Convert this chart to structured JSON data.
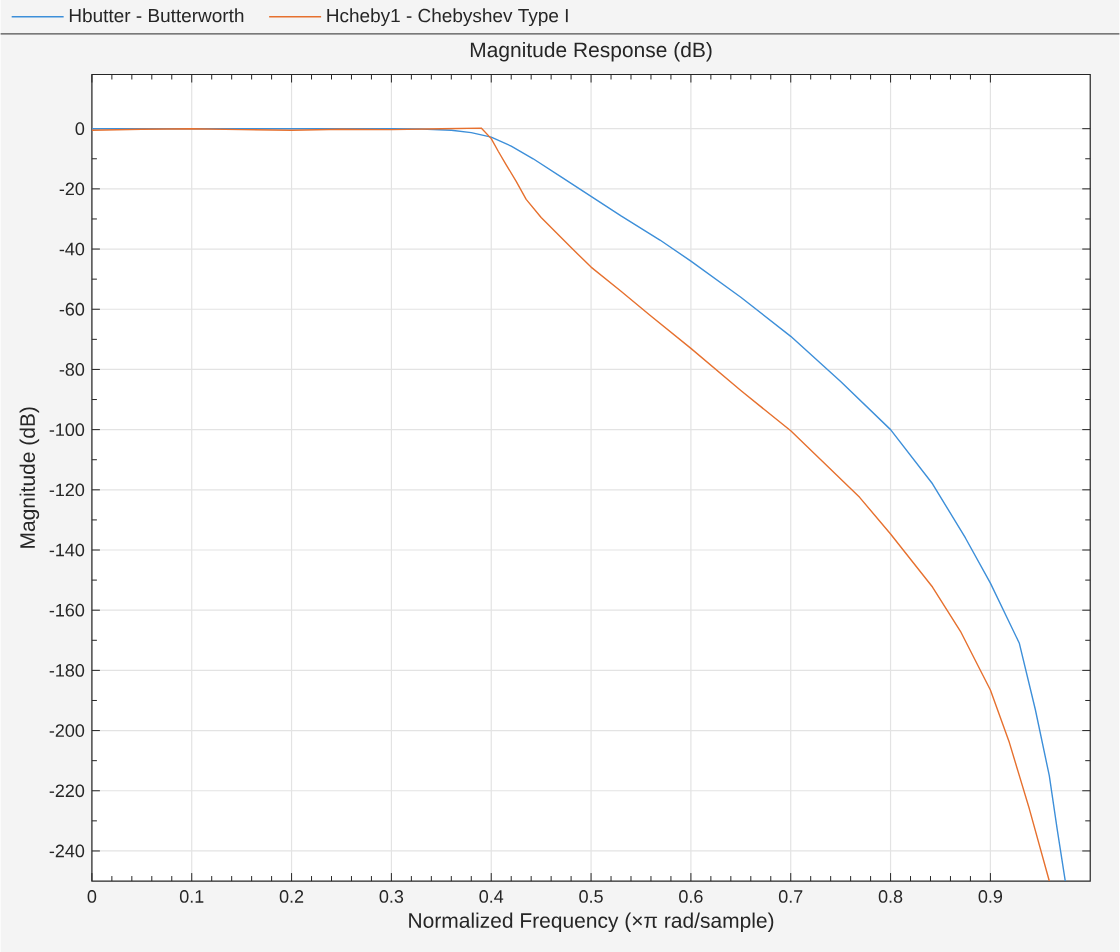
{
  "chart_data": {
    "type": "line",
    "title": "Magnitude Response (dB)",
    "xlabel": "Normalized Frequency (×π rad/sample)",
    "ylabel": "Magnitude (dB)",
    "xlim": [
      0,
      1
    ],
    "ylim": [
      -250,
      18
    ],
    "xticks": [
      0,
      0.1,
      0.2,
      0.3,
      0.4,
      0.5,
      0.6,
      0.7,
      0.8,
      0.9
    ],
    "yticks": [
      -240,
      -220,
      -200,
      -180,
      -160,
      -140,
      -120,
      -100,
      -80,
      -60,
      -40,
      -20,
      0
    ],
    "grid": true,
    "legend": "top",
    "line_style": "solid",
    "series": [
      {
        "name": "Hbutter - Butterworth",
        "color": "#3d8fd9",
        "x": [
          0,
          0.1,
          0.2,
          0.3,
          0.33,
          0.36,
          0.38,
          0.4,
          0.42,
          0.442,
          0.47,
          0.5,
          0.53,
          0.569,
          0.6,
          0.65,
          0.7,
          0.75,
          0.8,
          0.842,
          0.875,
          0.9,
          0.929,
          0.945,
          0.959,
          0.967,
          0.975
        ],
        "values": [
          0,
          0,
          0,
          0,
          -0.1,
          -0.5,
          -1.3,
          -2.8,
          -5.8,
          -10,
          -16,
          -22.5,
          -29,
          -37,
          -44,
          -56,
          -69,
          -84,
          -100,
          -118,
          -136,
          -151,
          -171,
          -193,
          -215,
          -233,
          -250
        ]
      },
      {
        "name": "Hcheby1 - Chebyshev Type I",
        "color": "#e6702e",
        "x": [
          0,
          0.05,
          0.1,
          0.15,
          0.2,
          0.25,
          0.3,
          0.35,
          0.39,
          0.4,
          0.407,
          0.415,
          0.425,
          0.435,
          0.45,
          0.465,
          0.48,
          0.5,
          0.53,
          0.559,
          0.6,
          0.65,
          0.7,
          0.769,
          0.8,
          0.842,
          0.87,
          0.9,
          0.919,
          0.939,
          0.959
        ],
        "values": [
          -0.5,
          -0.2,
          0,
          -0.3,
          -0.5,
          -0.2,
          -0.3,
          0,
          0.2,
          -3.3,
          -7.5,
          -12,
          -17.5,
          -23.5,
          -29.5,
          -34.5,
          -39.5,
          -46,
          -54,
          -62,
          -73,
          -87,
          -100.4,
          -122.5,
          -134.7,
          -152.3,
          -167,
          -186.5,
          -204,
          -226,
          -250
        ]
      }
    ]
  }
}
